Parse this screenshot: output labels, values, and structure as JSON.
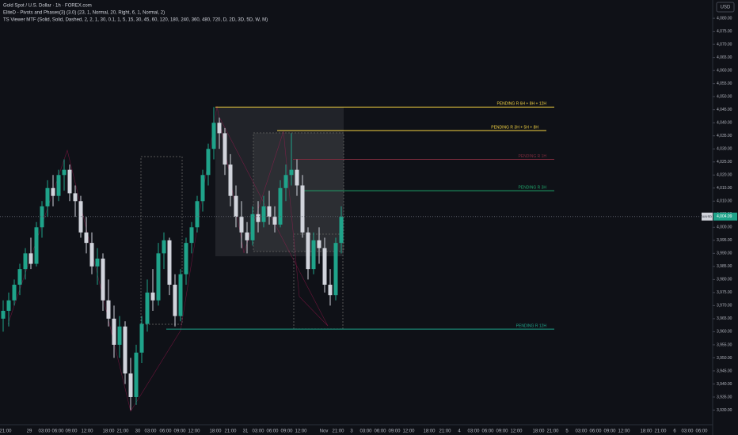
{
  "header": {
    "symbol": "Gold Spot / U.S. Dollar · 1h · FOREX.com",
    "indicator_1": "EliteD - Pivots and Phases(3) (3.0) (23, 1, Normal, 20, Right, 6, 1, Normal, 2)",
    "indicator_2": "TS Viewer MTF (Solid, Solid, Dashed, 2, 2, 1, 30, 0.1, 1, 5, 15, 30, 45, 60, 120, 180, 240, 360, 480, 720, D, 2D, 3D, 5D, W, M)"
  },
  "chart_data": {
    "type": "candlestick",
    "currency": "USD",
    "symbol_tag": "XAUUSD",
    "last_price": {
      "value": 4004.09,
      "label": "4,004.09"
    },
    "up_color": "#1fa38a",
    "down_color": "#d1d4dc",
    "ylim": [
      3925,
      4087
    ],
    "yticks": [
      {
        "value": 4080,
        "label": "4,080.00"
      },
      {
        "value": 4075,
        "label": "4,075.00"
      },
      {
        "value": 4070,
        "label": "4,070.00"
      },
      {
        "value": 4065,
        "label": "4,065.00"
      },
      {
        "value": 4060,
        "label": "4,060.00"
      },
      {
        "value": 4055,
        "label": "4,055.00"
      },
      {
        "value": 4050,
        "label": "4,050.00"
      },
      {
        "value": 4045,
        "label": "4,045.00"
      },
      {
        "value": 4040,
        "label": "4,040.00"
      },
      {
        "value": 4035,
        "label": "4,035.00"
      },
      {
        "value": 4030,
        "label": "4,030.00"
      },
      {
        "value": 4025,
        "label": "4,025.00"
      },
      {
        "value": 4020,
        "label": "4,020.00"
      },
      {
        "value": 4015,
        "label": "4,015.00"
      },
      {
        "value": 4010,
        "label": "4,010.00"
      },
      {
        "value": 4005,
        "label": "4,005.00"
      },
      {
        "value": 4000,
        "label": "4,000.00"
      },
      {
        "value": 3995,
        "label": "3,995.00"
      },
      {
        "value": 3990,
        "label": "3,990.00"
      },
      {
        "value": 3985,
        "label": "3,985.00"
      },
      {
        "value": 3980,
        "label": "3,980.00"
      },
      {
        "value": 3975,
        "label": "3,975.00"
      },
      {
        "value": 3970,
        "label": "3,970.00"
      },
      {
        "value": 3965,
        "label": "3,965.00"
      },
      {
        "value": 3960,
        "label": "3,960.00"
      },
      {
        "value": 3955,
        "label": "3,955.00"
      },
      {
        "value": 3950,
        "label": "3,950.00"
      },
      {
        "value": 3945,
        "label": "3,945.00"
      },
      {
        "value": 3940,
        "label": "3,940.00"
      },
      {
        "value": 3935,
        "label": "3,935.00"
      },
      {
        "value": 3930,
        "label": "3,930.00"
      }
    ],
    "time_labels": [
      "21:00",
      "29",
      "03:00",
      "06:00",
      "09:00",
      "12:00",
      "18:00",
      "21:00",
      "30",
      "03:00",
      "06:00",
      "09:00",
      "12:00",
      "18:00",
      "21:00",
      "31",
      "03:00",
      "06:00",
      "09:00",
      "12:00",
      "Nov",
      "21:00",
      "3",
      "03:00",
      "06:00",
      "09:00",
      "12:00",
      "18:00",
      "21:00",
      "4",
      "03:00",
      "06:00",
      "09:00",
      "12:00",
      "18:00",
      "21:00",
      "5",
      "03:00",
      "06:00",
      "09:00",
      "12:00",
      "18:00",
      "21:00",
      "6",
      "03:00",
      "06:00"
    ],
    "candles": [
      [
        3965,
        3972,
        3960,
        3968
      ],
      [
        3968,
        3975,
        3962,
        3972
      ],
      [
        3972,
        3980,
        3970,
        3978
      ],
      [
        3978,
        3986,
        3974,
        3984
      ],
      [
        3984,
        3992,
        3980,
        3990
      ],
      [
        3990,
        3996,
        3984,
        3986
      ],
      [
        3986,
        4002,
        3985,
        4000
      ],
      [
        4000,
        4010,
        3996,
        4008
      ],
      [
        4008,
        4018,
        4004,
        4015
      ],
      [
        4015,
        4020,
        4008,
        4012
      ],
      [
        4012,
        4022,
        4010,
        4020
      ],
      [
        4020,
        4026,
        4014,
        4022
      ],
      [
        4022,
        4024,
        4010,
        4013
      ],
      [
        4013,
        4016,
        4004,
        4010
      ],
      [
        4010,
        4012,
        3996,
        3998
      ],
      [
        3998,
        4004,
        3990,
        3994
      ],
      [
        3994,
        3998,
        3982,
        3985
      ],
      [
        3985,
        3992,
        3978,
        3988
      ],
      [
        3988,
        3990,
        3968,
        3972
      ],
      [
        3972,
        3980,
        3962,
        3965
      ],
      [
        3965,
        3970,
        3950,
        3955
      ],
      [
        3955,
        3966,
        3950,
        3962
      ],
      [
        3962,
        3964,
        3940,
        3944
      ],
      [
        3944,
        3950,
        3930,
        3935
      ],
      [
        3935,
        3955,
        3932,
        3952
      ],
      [
        3952,
        3966,
        3948,
        3963
      ],
      [
        3963,
        3980,
        3960,
        3975
      ],
      [
        3975,
        3984,
        3968,
        3972
      ],
      [
        3972,
        3994,
        3970,
        3990
      ],
      [
        3990,
        3998,
        3984,
        3995
      ],
      [
        3995,
        3996,
        3974,
        3978
      ],
      [
        3978,
        3982,
        3962,
        3966
      ],
      [
        3966,
        3984,
        3964,
        3982
      ],
      [
        3982,
        3996,
        3978,
        3994
      ],
      [
        3994,
        4002,
        3990,
        4000
      ],
      [
        4000,
        4012,
        3998,
        4010
      ],
      [
        4010,
        4022,
        4006,
        4020
      ],
      [
        4020,
        4032,
        4016,
        4030
      ],
      [
        4030,
        4046,
        4026,
        4040
      ],
      [
        4040,
        4042,
        4030,
        4036
      ],
      [
        4036,
        4038,
        4020,
        4024
      ],
      [
        4024,
        4028,
        4008,
        4012
      ],
      [
        4012,
        4016,
        4000,
        4004
      ],
      [
        4004,
        4010,
        3992,
        3998
      ],
      [
        3998,
        4002,
        3990,
        3995
      ],
      [
        3995,
        4008,
        3993,
        4005
      ],
      [
        4005,
        4010,
        3998,
        4002
      ],
      [
        4002,
        4012,
        4000,
        4008
      ],
      [
        4008,
        4014,
        4001,
        4004
      ],
      [
        4004,
        4008,
        3998,
        4001
      ],
      [
        4001,
        4018,
        4000,
        4015
      ],
      [
        4015,
        4024,
        4010,
        4020
      ],
      [
        4020,
        4036,
        4016,
        4022
      ],
      [
        4022,
        4026,
        4012,
        4016
      ],
      [
        4016,
        4020,
        3996,
        3998
      ],
      [
        3998,
        4000,
        3980,
        3984
      ],
      [
        3984,
        3998,
        3982,
        3995
      ],
      [
        3995,
        4000,
        3986,
        3992
      ],
      [
        3992,
        3996,
        3975,
        3978
      ],
      [
        3978,
        3984,
        3970,
        3974
      ],
      [
        3974,
        3996,
        3972,
        3994
      ],
      [
        3994,
        4008,
        3990,
        4004
      ]
    ],
    "levels": [
      {
        "name": "PENDING R 6H + 8H + 12H",
        "price": 4046,
        "color": "#f5d442"
      },
      {
        "name": "PENDING R 3H + 5H + 8H",
        "price": 4037,
        "color": "#f5d442"
      },
      {
        "name": "PENDING R 1H",
        "price": 4026,
        "color": "#7a2b3c"
      },
      {
        "name": "PENDING R 3H",
        "price": 4014,
        "color": "#1fa36a"
      },
      {
        "name": "PENDING R 12H",
        "price": 3961,
        "color": "#1fa38a"
      }
    ]
  }
}
